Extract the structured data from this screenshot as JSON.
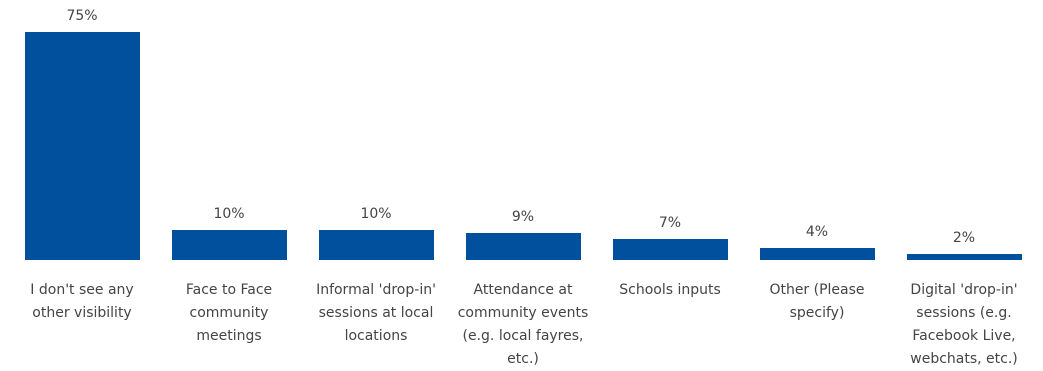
{
  "chart_data": {
    "type": "bar",
    "categories": [
      "I don't see any other visibility",
      "Face to Face community meetings",
      "Informal 'drop-in' sessions at local locations",
      "Attendance at community events (e.g. local fayres, etc.)",
      "Schools inputs",
      "Other (Please specify)",
      "Digital 'drop-in' sessions (e.g. Facebook Live, webchats, etc.)"
    ],
    "values": [
      75,
      10,
      10,
      9,
      7,
      4,
      2
    ],
    "value_labels": [
      "75%",
      "10%",
      "10%",
      "9%",
      "7%",
      "4%",
      "2%"
    ],
    "color": "#00509e"
  }
}
